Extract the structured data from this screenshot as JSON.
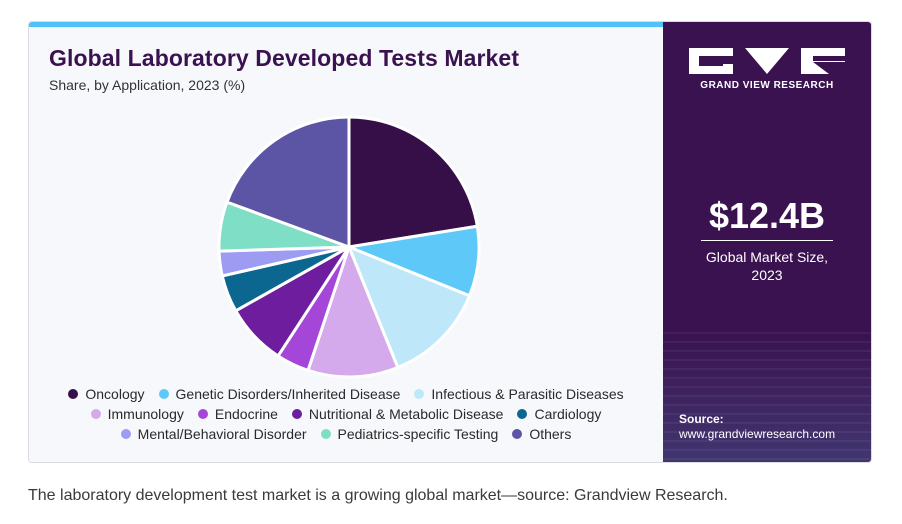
{
  "chart_data": {
    "type": "pie",
    "title": "Global Laboratory Developed Tests Market",
    "subtitle": "Share, by Application, 2023 (%)",
    "legend_position": "bottom",
    "slices": [
      {
        "name": "Oncology",
        "value": 22.0,
        "color": "#360f48"
      },
      {
        "name": "Genetic Disorders/Inherited Disease",
        "value": 8.5,
        "color": "#5ec8f8"
      },
      {
        "name": "Infectious & Parasitic Diseases",
        "value": 12.5,
        "color": "#bee8f9"
      },
      {
        "name": "Immunology",
        "value": 11.0,
        "color": "#d5aaec"
      },
      {
        "name": "Endocrine",
        "value": 4.0,
        "color": "#a447d8"
      },
      {
        "name": "Nutritional & Metabolic Disease",
        "value": 7.5,
        "color": "#6e1d9e"
      },
      {
        "name": "Cardiology",
        "value": 4.5,
        "color": "#0b6690"
      },
      {
        "name": "Mental/Behavioral Disorder",
        "value": 3.0,
        "color": "#9d9cf2"
      },
      {
        "name": "Pediatrics-specific Testing",
        "value": 6.0,
        "color": "#7edfc6"
      },
      {
        "name": "Others",
        "value": 19.0,
        "color": "#5c55a6"
      }
    ]
  },
  "legend_rows": [
    [
      0,
      1,
      2
    ],
    [
      3,
      4,
      5,
      6
    ],
    [
      7,
      8,
      9
    ]
  ],
  "sidebar": {
    "brand": "GRAND VIEW RESEARCH",
    "market_size": "$12.4B",
    "market_size_label_line1": "Global Market Size,",
    "market_size_label_line2": "2023",
    "source_label": "Source:",
    "source_url": "www.grandviewresearch.com"
  },
  "caption": "The laboratory development test market is a growing global market—source: Grandview Research."
}
